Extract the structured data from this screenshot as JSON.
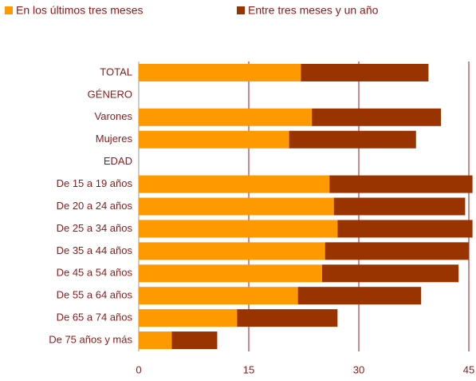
{
  "chart_data": {
    "type": "stacked-barh",
    "categories": [
      "TOTAL",
      "GÉNERO",
      "Varones",
      "Mujeres",
      "EDAD",
      "De 15 a 19 años",
      "De 20 a 24 años",
      "De 25 a 34 años",
      "De 35 a 44 años",
      "De 45 a 54 años",
      "De 55 a 64 años",
      "De 65 a 74 años",
      "De 75 años y más"
    ],
    "series": [
      {
        "name": "En los últimos tres meses",
        "color": "#ff9900",
        "values": [
          22.1,
          null,
          23.6,
          20.5,
          null,
          26.0,
          26.6,
          27.1,
          25.4,
          25.0,
          21.7,
          13.4,
          4.5
        ]
      },
      {
        "name": "Entre tres meses y un año",
        "color": "#993300",
        "values": [
          17.4,
          null,
          17.6,
          17.3,
          null,
          19.5,
          17.9,
          18.4,
          19.6,
          18.6,
          16.8,
          13.7,
          6.2
        ]
      }
    ],
    "xlim": [
      0,
      45.5
    ],
    "xticks": [
      0,
      15,
      30,
      45
    ],
    "grid": true,
    "legend": "top"
  }
}
